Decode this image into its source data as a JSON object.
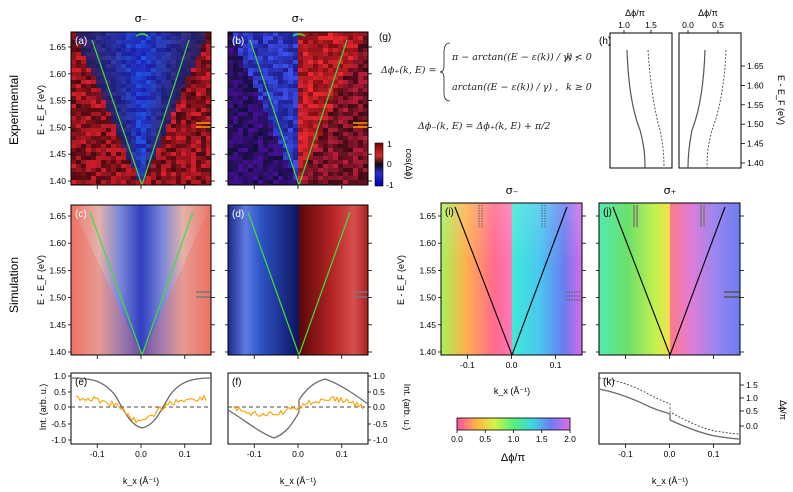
{
  "figure": {
    "col_header_minus": "σ₋",
    "col_header_plus": "σ₊",
    "row_label_experimental": "Experimental",
    "row_label_simulation": "Simulation",
    "ylabel": "E - E_F (eV)",
    "xlabel": "k_x (Å⁻¹)",
    "ylabel_int": "Int. (arb. u.)",
    "int_label_f": "Int. (arb. u.)",
    "phase_label": "Δϕ/π",
    "cbar_label": "cos(Δϕ)",
    "panel_labels": [
      "(a)",
      "(b)",
      "(c)",
      "(d)",
      "(e)",
      "(f)",
      "(g)",
      "(h)",
      "(i)",
      "(j)",
      "(k)"
    ],
    "energy_ticks": [
      "1.65",
      "1.60",
      "1.55",
      "1.50",
      "1.45",
      "1.40"
    ],
    "k_ticks": [
      "-0.1",
      "0.0",
      "0.1"
    ],
    "int_ticks": [
      "1.0",
      "0.5",
      "0.0",
      "-0.5",
      "-1.0"
    ],
    "cbar_ticks": [
      "1",
      "0",
      "-1"
    ],
    "phase_cbar_ticks": [
      "0.0",
      "0.5",
      "1.0",
      "1.5",
      "2.0"
    ],
    "h_left_ticks": [
      "1.0",
      "1.5"
    ],
    "h_right_ticks": [
      "0.0",
      "0.5"
    ],
    "k_phase_ticks": [
      "1.5",
      "1.0",
      "0.5",
      "0.0"
    ]
  },
  "equations": {
    "eq1_lhs": "Δϕ₊(k, E) =",
    "eq1_case1": "π − arctan((E − ε(k)) / γ) ,",
    "eq1_case1_cond": "k < 0",
    "eq1_case2": "arctan((E − ε(k)) / γ) ,",
    "eq1_case2_cond": "k ≥ 0",
    "eq2": "Δϕ₋(k, E) = Δϕ₊(k, E) + π/2"
  },
  "colors": {
    "blue": "#1a1aa0",
    "red": "#8b0d0d",
    "dirac_line": "#3ce03c",
    "orange": "#ff9f00",
    "gray_curve": "#6b6b6b"
  }
}
